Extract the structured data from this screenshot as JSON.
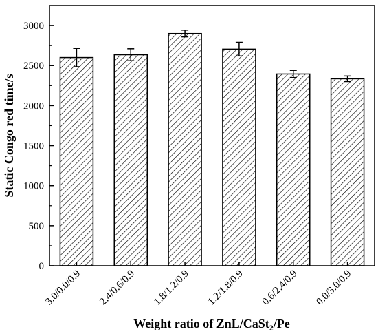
{
  "chart_data": {
    "type": "bar",
    "categories": [
      "3.0/0.0/0.9",
      "2.4/0.6/0.9",
      "1.8/1.2/0.9",
      "1.2/1.8/0.9",
      "0.6/2.4/0.9",
      "0.0/3.0/0.9"
    ],
    "values": [
      2600,
      2635,
      2900,
      2705,
      2395,
      2335
    ],
    "errors": [
      115,
      75,
      42,
      85,
      45,
      35
    ],
    "xlabel": {
      "main": "Weight ratio of ZnL/CaSt",
      "sub": "2",
      "tail": "/Pe"
    },
    "ylabel": "Static Congo red time/s",
    "ylim": [
      0,
      3250
    ],
    "yticks": [
      0,
      500,
      1000,
      1500,
      2000,
      2500,
      3000
    ],
    "fill": "diagonal-hatch",
    "bar_color": "#ffffff",
    "hatch_color": "#000000",
    "grid": false,
    "legend": "none"
  }
}
